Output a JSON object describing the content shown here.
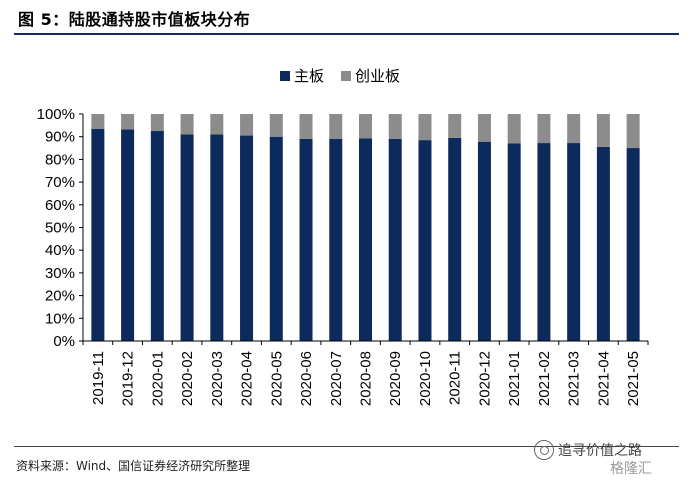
{
  "figure": {
    "title": "图 5：陆股通持股市值板块分布",
    "source": "资料来源：Wind、国信证券经济研究所整理",
    "watermark": "追寻价值之路",
    "watermark_brand": "格隆汇"
  },
  "colors": {
    "main_board": "#0d2a5c",
    "chinext": "#8c8c8c",
    "title_rule": "#1b2a63"
  },
  "chart_data": {
    "type": "bar",
    "stacked": true,
    "categories": [
      "2019-11",
      "2019-12",
      "2020-01",
      "2020-02",
      "2020-03",
      "2020-04",
      "2020-05",
      "2020-06",
      "2020-07",
      "2020-08",
      "2020-09",
      "2020-10",
      "2020-11",
      "2020-12",
      "2021-01",
      "2021-02",
      "2021-03",
      "2021-04",
      "2021-05"
    ],
    "series": [
      {
        "name": "主板",
        "values": [
          93.5,
          93.2,
          92.5,
          91.0,
          91.0,
          90.5,
          90.0,
          89.0,
          89.0,
          89.3,
          89.0,
          88.5,
          89.5,
          87.8,
          87.0,
          87.2,
          87.2,
          85.5,
          85.0
        ]
      },
      {
        "name": "创业板",
        "values": [
          6.5,
          6.8,
          7.5,
          9.0,
          9.0,
          9.5,
          10.0,
          11.0,
          11.0,
          10.7,
          11.0,
          11.5,
          10.5,
          12.2,
          13.0,
          12.8,
          12.8,
          14.5,
          15.0
        ]
      }
    ],
    "ylim": [
      0,
      100
    ],
    "yticks": [
      "0%",
      "10%",
      "20%",
      "30%",
      "40%",
      "50%",
      "60%",
      "70%",
      "80%",
      "90%",
      "100%"
    ],
    "legend_position": "top-center",
    "grid": false
  }
}
